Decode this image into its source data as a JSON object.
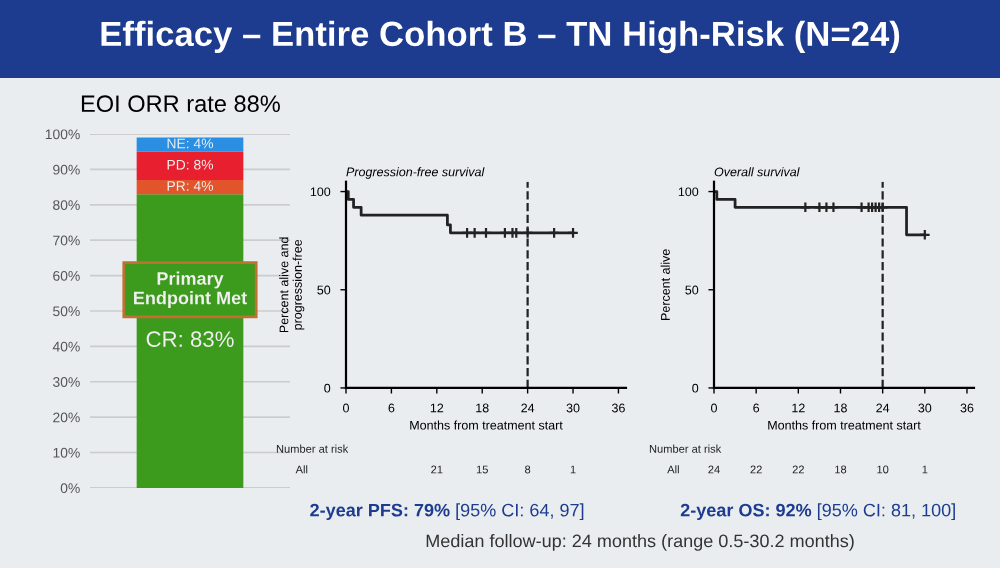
{
  "chart_data": [
    {
      "type": "bar",
      "title": "Efficacy – Entire Cohort B – TN High-Risk (N=24)",
      "subtitle": "EOI ORR rate 88%",
      "categories": [
        null
      ],
      "stacked": true,
      "ylim": [
        0,
        100
      ],
      "yticks": [
        {
          "value": 0,
          "label": "0%"
        },
        {
          "value": 10,
          "label": "10%"
        },
        {
          "value": 20,
          "label": "20%"
        },
        {
          "value": 30,
          "label": "30%"
        },
        {
          "value": 40,
          "label": "40%"
        },
        {
          "value": 50,
          "label": "50%"
        },
        {
          "value": 60,
          "label": "60%"
        },
        {
          "value": 70,
          "label": "70%"
        },
        {
          "value": 80,
          "label": "80%"
        },
        {
          "value": 90,
          "label": "90%"
        },
        {
          "value": 100,
          "label": "100%"
        }
      ],
      "grid": "y",
      "series": [
        {
          "color": "#3c9a1c",
          "values": [
            83
          ],
          "value_labels": [
            "CR: 83%"
          ]
        },
        {
          "color": "#e2552c",
          "values": [
            4
          ],
          "value_labels": [
            "PR: 4%"
          ]
        },
        {
          "color": "#e81f2e",
          "values": [
            8
          ],
          "value_labels": [
            "PD: 8%"
          ]
        },
        {
          "color": "#2a8fe2",
          "values": [
            4
          ],
          "value_labels": [
            "NE: 4%"
          ]
        }
      ],
      "annotations": [
        "Primary\nEndpoint Met",
        "Median follow-up: 24 months (range 0.5-30.2 months)"
      ]
    },
    {
      "type": "step",
      "title": "Progression-free survival",
      "xlabel": "Months from treatment start",
      "ylabel": "Percent alive and\nprogression-free",
      "xlim": [
        0,
        37
      ],
      "ylim": [
        0,
        105
      ],
      "xticks": [
        0,
        6,
        12,
        18,
        24,
        30,
        36
      ],
      "yticks": [
        0,
        50,
        100
      ],
      "grid": false,
      "line_style": "solid",
      "series": [
        {
          "color": "#222222",
          "x": [
            0,
            0.3,
            1,
            2,
            13,
            13.4,
            13.8,
            30
          ],
          "values": [
            100,
            96,
            92,
            88,
            88,
            83,
            79,
            79
          ]
        },
        {
          "type": "scatter",
          "marker": "cross",
          "color": "#222222",
          "x": [
            16,
            17,
            18.5,
            21,
            22,
            22.5,
            24,
            27.5,
            30
          ],
          "values": [
            79,
            79,
            79,
            79,
            79,
            79,
            79,
            79,
            79
          ]
        }
      ],
      "ref_lines": [
        {
          "axis": "x",
          "value": 24,
          "line_style": "dashed",
          "color": "#222222"
        }
      ],
      "annotations": [
        "Number at risk",
        "All",
        "21",
        "15",
        "8",
        "1",
        "2-year PFS: 79% [95% CI: 64, 97]"
      ]
    },
    {
      "type": "step",
      "title": "Overall survival",
      "xlabel": "Months from treatment start",
      "ylabel": "Percent alive",
      "xlim": [
        0,
        37
      ],
      "ylim": [
        0,
        105
      ],
      "xticks": [
        0,
        6,
        12,
        18,
        24,
        30,
        36
      ],
      "yticks": [
        0,
        50,
        100
      ],
      "grid": false,
      "line_style": "solid",
      "series": [
        {
          "color": "#222222",
          "x": [
            0,
            0.4,
            3,
            27,
            27.4,
            30
          ],
          "values": [
            100,
            96,
            92,
            92,
            78,
            78
          ]
        },
        {
          "type": "scatter",
          "marker": "cross",
          "color": "#222222",
          "x": [
            13,
            15,
            16,
            17,
            21,
            22,
            22.5,
            23,
            23.5,
            24,
            30
          ],
          "values": [
            92,
            92,
            92,
            92,
            92,
            92,
            92,
            92,
            92,
            92,
            78
          ]
        }
      ],
      "ref_lines": [
        {
          "axis": "x",
          "value": 24,
          "line_style": "dashed",
          "color": "#222222"
        }
      ],
      "annotations": [
        "Number at risk",
        "All",
        "24",
        "22",
        "22",
        "18",
        "10",
        "1",
        "2-year OS: 92% [95% CI: 81, 100]"
      ]
    }
  ]
}
